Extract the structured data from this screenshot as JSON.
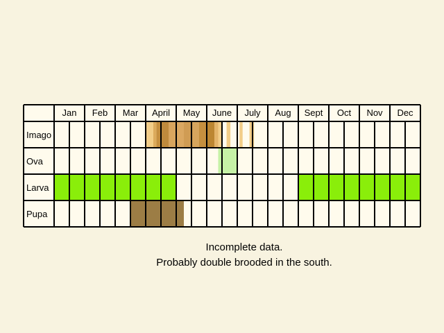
{
  "chart_data": {
    "type": "table",
    "months": [
      "Jan",
      "Feb",
      "Mar",
      "April",
      "May",
      "June",
      "July",
      "Aug",
      "Sept",
      "Oct",
      "Nov",
      "Dec"
    ],
    "cells_per_month": 2,
    "rows": [
      {
        "label": "Imago",
        "blocks": [
          {
            "start": 6.0,
            "end": 6.5,
            "color": "#f2cd88"
          },
          {
            "start": 6.5,
            "end": 6.7,
            "color": "#dcaa5c"
          },
          {
            "start": 6.7,
            "end": 7.0,
            "color": "#c58f3f"
          },
          {
            "start": 7.0,
            "end": 7.5,
            "color": "#bf8a3d"
          },
          {
            "start": 7.5,
            "end": 8.0,
            "color": "#d8a55e"
          },
          {
            "start": 8.0,
            "end": 8.5,
            "color": "#dba862"
          },
          {
            "start": 8.5,
            "end": 9.0,
            "color": "#d09c54"
          },
          {
            "start": 9.0,
            "end": 9.5,
            "color": "#d7a55d"
          },
          {
            "start": 9.5,
            "end": 10.0,
            "color": "#c58f3f"
          },
          {
            "start": 10.0,
            "end": 10.5,
            "color": "#bc8632"
          },
          {
            "start": 10.5,
            "end": 10.75,
            "color": "#e3b46a"
          },
          {
            "start": 10.75,
            "end": 11.0,
            "color": "#f2cd88"
          },
          {
            "start": 11.3,
            "end": 11.55,
            "color": "#f2cd88"
          },
          {
            "start": 12.15,
            "end": 12.35,
            "color": "#f2cd88"
          },
          {
            "start": 12.8,
            "end": 13.1,
            "color": "#f2cd88"
          }
        ]
      },
      {
        "label": "Ova",
        "blocks": [
          {
            "start": 10.75,
            "end": 12.0,
            "color": "#c6f2a6"
          }
        ]
      },
      {
        "label": "Larva",
        "blocks": [
          {
            "start": 0.0,
            "end": 8.0,
            "color": "#8aee0a"
          },
          {
            "start": 16.0,
            "end": 24.0,
            "color": "#8aee0a"
          }
        ]
      },
      {
        "label": "Pupa",
        "blocks": [
          {
            "start": 5.0,
            "end": 8.5,
            "color": "#9c7d45"
          }
        ]
      }
    ]
  },
  "notes": [
    "Incomplete data.",
    "Probably double brooded in the south."
  ],
  "colors": {
    "background": "#f8f3e0",
    "cell": "#fffbed",
    "grid": "#000000"
  }
}
